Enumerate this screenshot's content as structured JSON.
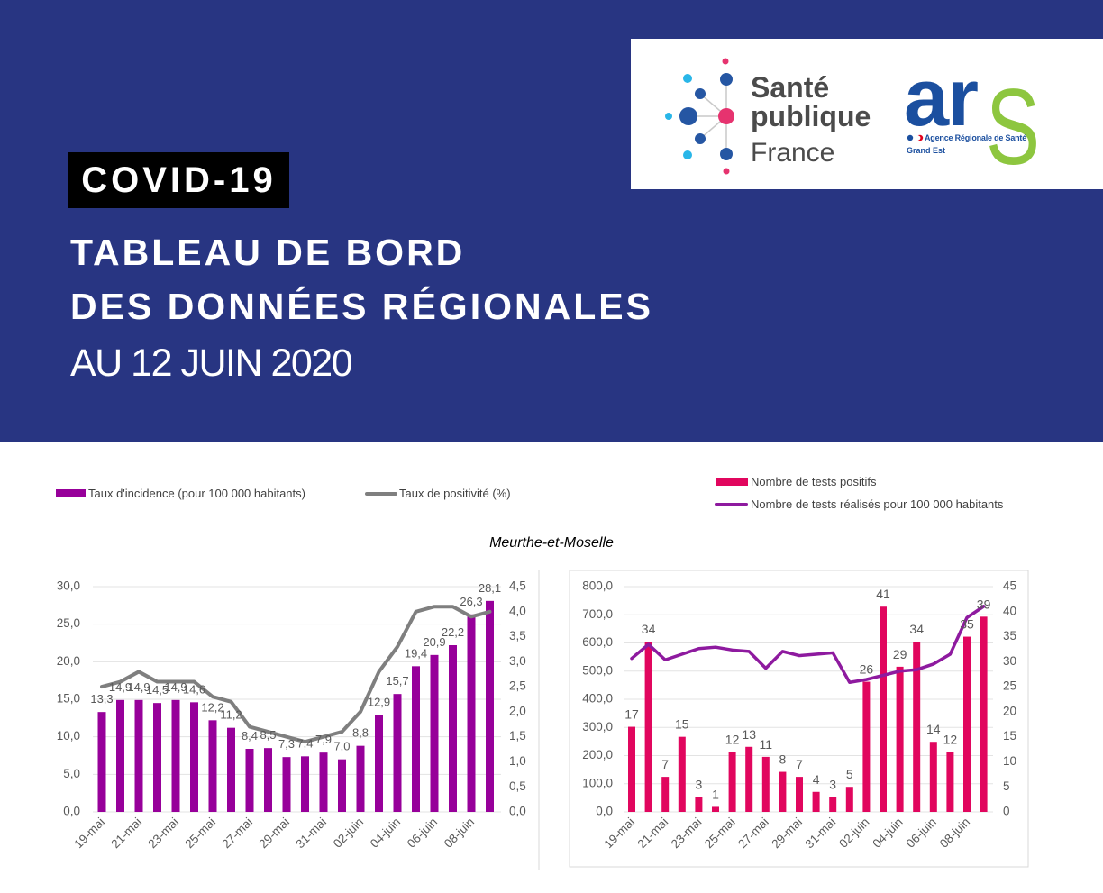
{
  "header": {
    "badge": "COVID-19",
    "title_line1": "TABLEAU DE BORD",
    "title_line2": "DES DONNÉES RÉGIONALES",
    "date_line": "AU 12 JUIN 2020"
  },
  "logos": {
    "sante_publique_france": {
      "line1": "Santé",
      "line2": "publique",
      "line3": "France"
    },
    "ars": {
      "ar": "ar",
      "s": "S",
      "agency": "Agence Régionale de Santé",
      "region": "Grand Est"
    }
  },
  "colors": {
    "header_bg": "#283582",
    "incidence_bar": "#97009a",
    "positivity_line": "#7f7f7f",
    "positive_tests_bar": "#e1065e",
    "tests_line": "#8e1a9f",
    "spf_blue": "#2556a3",
    "spf_cyan": "#29b6e8",
    "spf_pink": "#e6336f",
    "ars_blue": "#1b4f9f",
    "ars_green": "#8dc63f"
  },
  "department": "Meurthe-et-Moselle",
  "chart_data": [
    {
      "type": "bar",
      "title": "",
      "xlabel": "",
      "ylabel": "",
      "categories": [
        "19-mai",
        "20-mai",
        "21-mai",
        "22-mai",
        "23-mai",
        "24-mai",
        "25-mai",
        "26-mai",
        "27-mai",
        "28-mai",
        "29-mai",
        "30-mai",
        "31-mai",
        "01-juin",
        "02-juin",
        "03-juin",
        "04-juin",
        "05-juin",
        "06-juin",
        "07-juin",
        "08-juin",
        "09-juin"
      ],
      "x_tick_labels": [
        "19-mai",
        "21-mai",
        "23-mai",
        "25-mai",
        "27-mai",
        "29-mai",
        "31-mai",
        "02-juin",
        "04-juin",
        "06-juin",
        "08-juin"
      ],
      "series": [
        {
          "name": "Taux d'incidence (pour 100 000 habitants)",
          "kind": "bar",
          "axis": "left",
          "color": "#97009a",
          "values": [
            13.3,
            14.9,
            14.9,
            14.5,
            14.9,
            14.6,
            12.2,
            11.2,
            8.4,
            8.5,
            7.3,
            7.4,
            7.9,
            7.0,
            8.8,
            12.9,
            15.7,
            19.4,
            20.9,
            22.2,
            26.3,
            28.1
          ],
          "labels": [
            "13,3",
            "14,9",
            "14,9",
            "14,5",
            "14,9",
            "14,6",
            "12,2",
            "11,2",
            "8,4",
            "8,5",
            "7,3",
            "7,4",
            "7,9",
            "7,0",
            "8,8",
            "12,9",
            "15,7",
            "19,4",
            "20,9",
            "22,2",
            "26,3",
            "28,1"
          ]
        },
        {
          "name": "Taux de positivité (%)",
          "kind": "line",
          "axis": "right",
          "color": "#7f7f7f",
          "values": [
            2.5,
            2.6,
            2.8,
            2.6,
            2.6,
            2.6,
            2.3,
            2.2,
            1.7,
            1.6,
            1.5,
            1.4,
            1.5,
            1.6,
            2.0,
            2.8,
            3.3,
            4.0,
            4.1,
            4.1,
            3.9,
            4.0
          ]
        }
      ],
      "y_left": {
        "range": [
          0,
          30
        ],
        "ticks": [
          "0,0",
          "5,0",
          "10,0",
          "15,0",
          "20,0",
          "25,0",
          "30,0"
        ]
      },
      "y_right": {
        "range": [
          0,
          4.5
        ],
        "ticks": [
          "0,0",
          "0,5",
          "1,0",
          "1,5",
          "2,0",
          "2,5",
          "3,0",
          "3,5",
          "4,0",
          "4,5"
        ]
      },
      "legend": "top-left",
      "grid": true
    },
    {
      "type": "bar",
      "title": "",
      "xlabel": "",
      "ylabel": "",
      "categories": [
        "19-mai",
        "20-mai",
        "21-mai",
        "22-mai",
        "23-mai",
        "24-mai",
        "25-mai",
        "26-mai",
        "27-mai",
        "28-mai",
        "29-mai",
        "30-mai",
        "31-mai",
        "01-juin",
        "02-juin",
        "03-juin",
        "04-juin",
        "05-juin",
        "06-juin",
        "07-juin",
        "08-juin",
        "09-juin"
      ],
      "x_tick_labels": [
        "19-mai",
        "21-mai",
        "23-mai",
        "25-mai",
        "27-mai",
        "29-mai",
        "31-mai",
        "02-juin",
        "04-juin",
        "06-juin",
        "08-juin"
      ],
      "series": [
        {
          "name": "Nombre de tests positifs",
          "kind": "bar",
          "axis": "right",
          "color": "#e1065e",
          "values": [
            17,
            34,
            7,
            15,
            3,
            1,
            12,
            13,
            11,
            8,
            7,
            4,
            3,
            5,
            26,
            41,
            29,
            34,
            14,
            12,
            35,
            39
          ],
          "labels": [
            "17",
            "34",
            "7",
            "15",
            "3",
            "1",
            "12",
            "13",
            "11",
            "8",
            "7",
            "4",
            "3",
            "5",
            "26",
            "41",
            "29",
            "34",
            "14",
            "12",
            "35",
            "39"
          ]
        },
        {
          "name": "Nombre de tests réalisés pour 100 000 habitants",
          "kind": "line",
          "axis": "left",
          "color": "#8e1a9f",
          "values": [
            545,
            595,
            540,
            560,
            580,
            585,
            575,
            570,
            510,
            570,
            555,
            560,
            565,
            460,
            470,
            485,
            500,
            505,
            525,
            560,
            690,
            730
          ]
        }
      ],
      "y_left": {
        "range": [
          0,
          800
        ],
        "ticks": [
          "0,0",
          "100,0",
          "200,0",
          "300,0",
          "400,0",
          "500,0",
          "600,0",
          "700,0",
          "800,0"
        ]
      },
      "y_right": {
        "range": [
          0,
          45
        ],
        "ticks": [
          "0",
          "5",
          "10",
          "15",
          "20",
          "25",
          "30",
          "35",
          "40",
          "45"
        ]
      },
      "legend": "top-right",
      "grid": true
    }
  ]
}
